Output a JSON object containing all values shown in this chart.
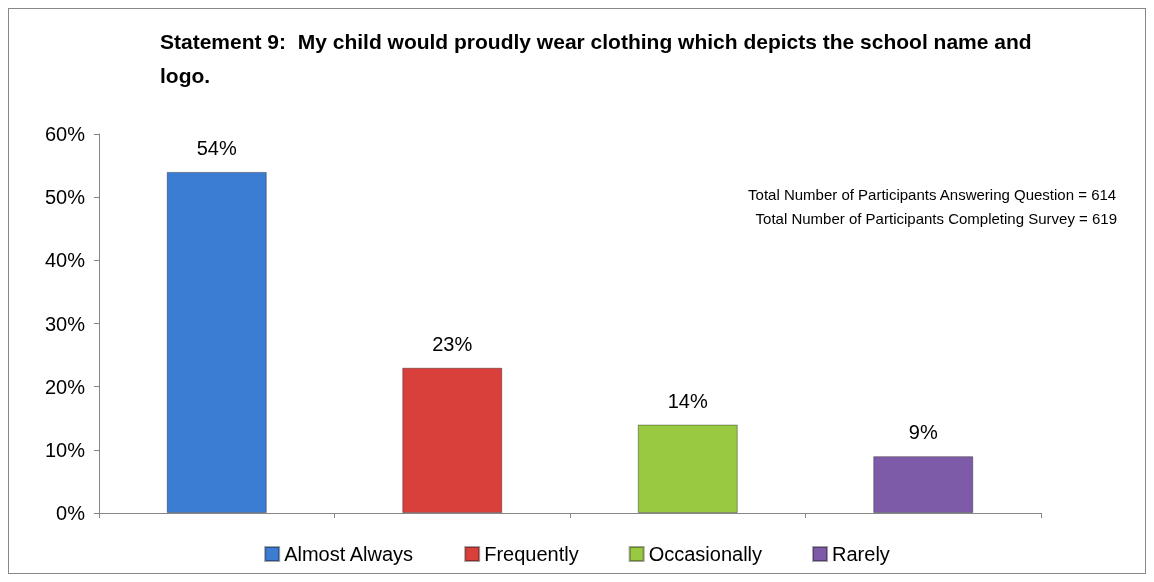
{
  "chart_data": {
    "type": "bar",
    "title": "Statement 9:  My child would proudly wear clothing which depicts the school name and logo.",
    "categories": [
      null,
      null,
      null,
      null
    ],
    "series": [
      {
        "name": "Almost Always",
        "color": "#3c7dd4",
        "values": [
          54,
          null,
          null,
          null
        ],
        "value_labels": [
          "54%",
          null,
          null,
          null
        ]
      },
      {
        "name": "Frequently",
        "color": "#d9403c",
        "values": [
          null,
          23,
          null,
          null
        ],
        "value_labels": [
          null,
          "23%",
          null,
          null
        ]
      },
      {
        "name": "Occasionally",
        "color": "#99c940",
        "values": [
          null,
          null,
          14,
          null
        ],
        "value_labels": [
          null,
          null,
          "14%",
          null
        ]
      },
      {
        "name": "Rarely",
        "color": "#7e5ba8",
        "values": [
          null,
          null,
          null,
          9
        ],
        "value_labels": [
          null,
          null,
          null,
          "9%"
        ]
      }
    ],
    "ylim": [
      0,
      60
    ],
    "yticks": [
      {
        "value": 0,
        "label": "0%"
      },
      {
        "value": 10,
        "label": "10%"
      },
      {
        "value": 20,
        "label": "20%"
      },
      {
        "value": 30,
        "label": "30%"
      },
      {
        "value": 40,
        "label": "40%"
      },
      {
        "value": 50,
        "label": "50%"
      },
      {
        "value": 60,
        "label": "60%"
      }
    ],
    "annotations": [
      "Total Number of Participants Answering Question = 614",
      "Total Number of Participants Completing Survey = 619"
    ],
    "legend": "bottom",
    "grid": false
  }
}
